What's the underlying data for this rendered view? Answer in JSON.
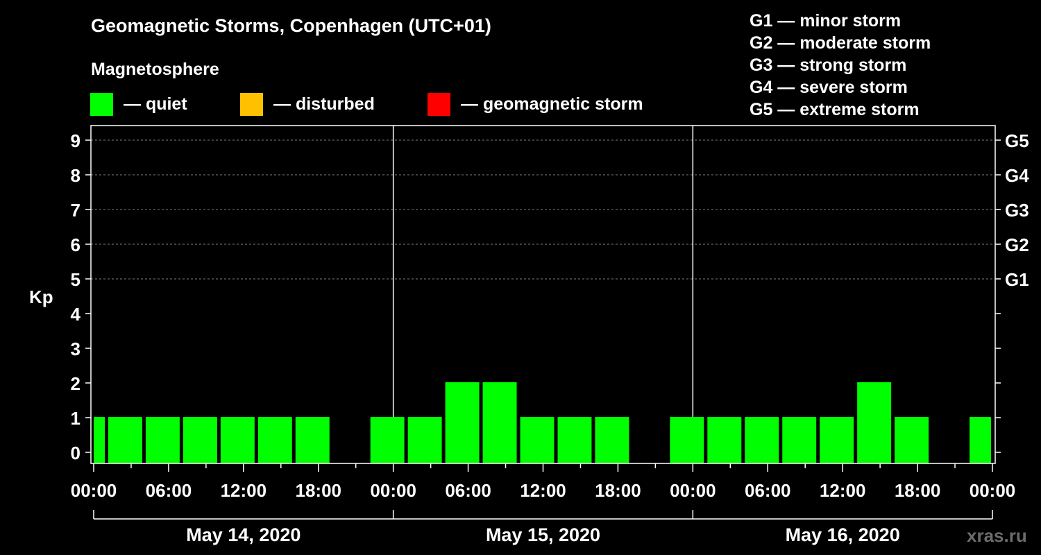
{
  "title": "Geomagnetic Storms, Copenhagen (UTC+01)",
  "legend": {
    "heading": "Magnetosphere",
    "items": [
      {
        "label": "— quiet",
        "color": "#00ff00"
      },
      {
        "label": "— disturbed",
        "color": "#ffc000"
      },
      {
        "label": "— geomagnetic storm",
        "color": "#ff0000"
      }
    ]
  },
  "storm_scale": [
    "G1 — minor storm",
    "G2 — moderate storm",
    "G3 — strong storm",
    "G4 — severe storm",
    "G5 — extreme storm"
  ],
  "watermark": "xras.ru",
  "chart_data": {
    "type": "bar",
    "ylabel": "Kp",
    "ylim": [
      0,
      9
    ],
    "yticks": [
      "0",
      "1",
      "2",
      "3",
      "4",
      "5",
      "6",
      "7",
      "8",
      "9"
    ],
    "right_ticks": [
      {
        "kp": 5,
        "label": "G1"
      },
      {
        "kp": 6,
        "label": "G2"
      },
      {
        "kp": 7,
        "label": "G3"
      },
      {
        "kp": 8,
        "label": "G4"
      },
      {
        "kp": 9,
        "label": "G5"
      }
    ],
    "x_range_hours": [
      0,
      72
    ],
    "x_tick_labels": [
      "00:00",
      "06:00",
      "12:00",
      "18:00",
      "00:00",
      "06:00",
      "12:00",
      "18:00",
      "00:00",
      "06:00",
      "12:00",
      "18:00",
      "00:00"
    ],
    "x_tick_hours": [
      0,
      6,
      12,
      18,
      24,
      30,
      36,
      42,
      48,
      54,
      60,
      66,
      72
    ],
    "days": [
      "May 14, 2020",
      "May 15, 2020",
      "May 16, 2020"
    ],
    "grid": "dashed horizontal at Kp 5-9",
    "color_quiet": "#00ff00",
    "bars": [
      {
        "start": 0,
        "end": 1,
        "kp": 1
      },
      {
        "start": 1,
        "end": 4,
        "kp": 1
      },
      {
        "start": 4,
        "end": 7,
        "kp": 1
      },
      {
        "start": 7,
        "end": 10,
        "kp": 1
      },
      {
        "start": 10,
        "end": 13,
        "kp": 1
      },
      {
        "start": 13,
        "end": 16,
        "kp": 1
      },
      {
        "start": 16,
        "end": 19,
        "kp": 1
      },
      {
        "start": 19,
        "end": 22,
        "kp": 0
      },
      {
        "start": 22,
        "end": 25,
        "kp": 1
      },
      {
        "start": 25,
        "end": 28,
        "kp": 1
      },
      {
        "start": 28,
        "end": 31,
        "kp": 2
      },
      {
        "start": 31,
        "end": 34,
        "kp": 2
      },
      {
        "start": 34,
        "end": 37,
        "kp": 1
      },
      {
        "start": 37,
        "end": 40,
        "kp": 1
      },
      {
        "start": 40,
        "end": 43,
        "kp": 1
      },
      {
        "start": 43,
        "end": 46,
        "kp": 0
      },
      {
        "start": 46,
        "end": 49,
        "kp": 1
      },
      {
        "start": 49,
        "end": 52,
        "kp": 1
      },
      {
        "start": 52,
        "end": 55,
        "kp": 1
      },
      {
        "start": 55,
        "end": 58,
        "kp": 1
      },
      {
        "start": 58,
        "end": 61,
        "kp": 1
      },
      {
        "start": 61,
        "end": 64,
        "kp": 2
      },
      {
        "start": 64,
        "end": 67,
        "kp": 1
      },
      {
        "start": 67,
        "end": 70,
        "kp": 0
      },
      {
        "start": 70,
        "end": 72,
        "kp": 1
      }
    ]
  }
}
